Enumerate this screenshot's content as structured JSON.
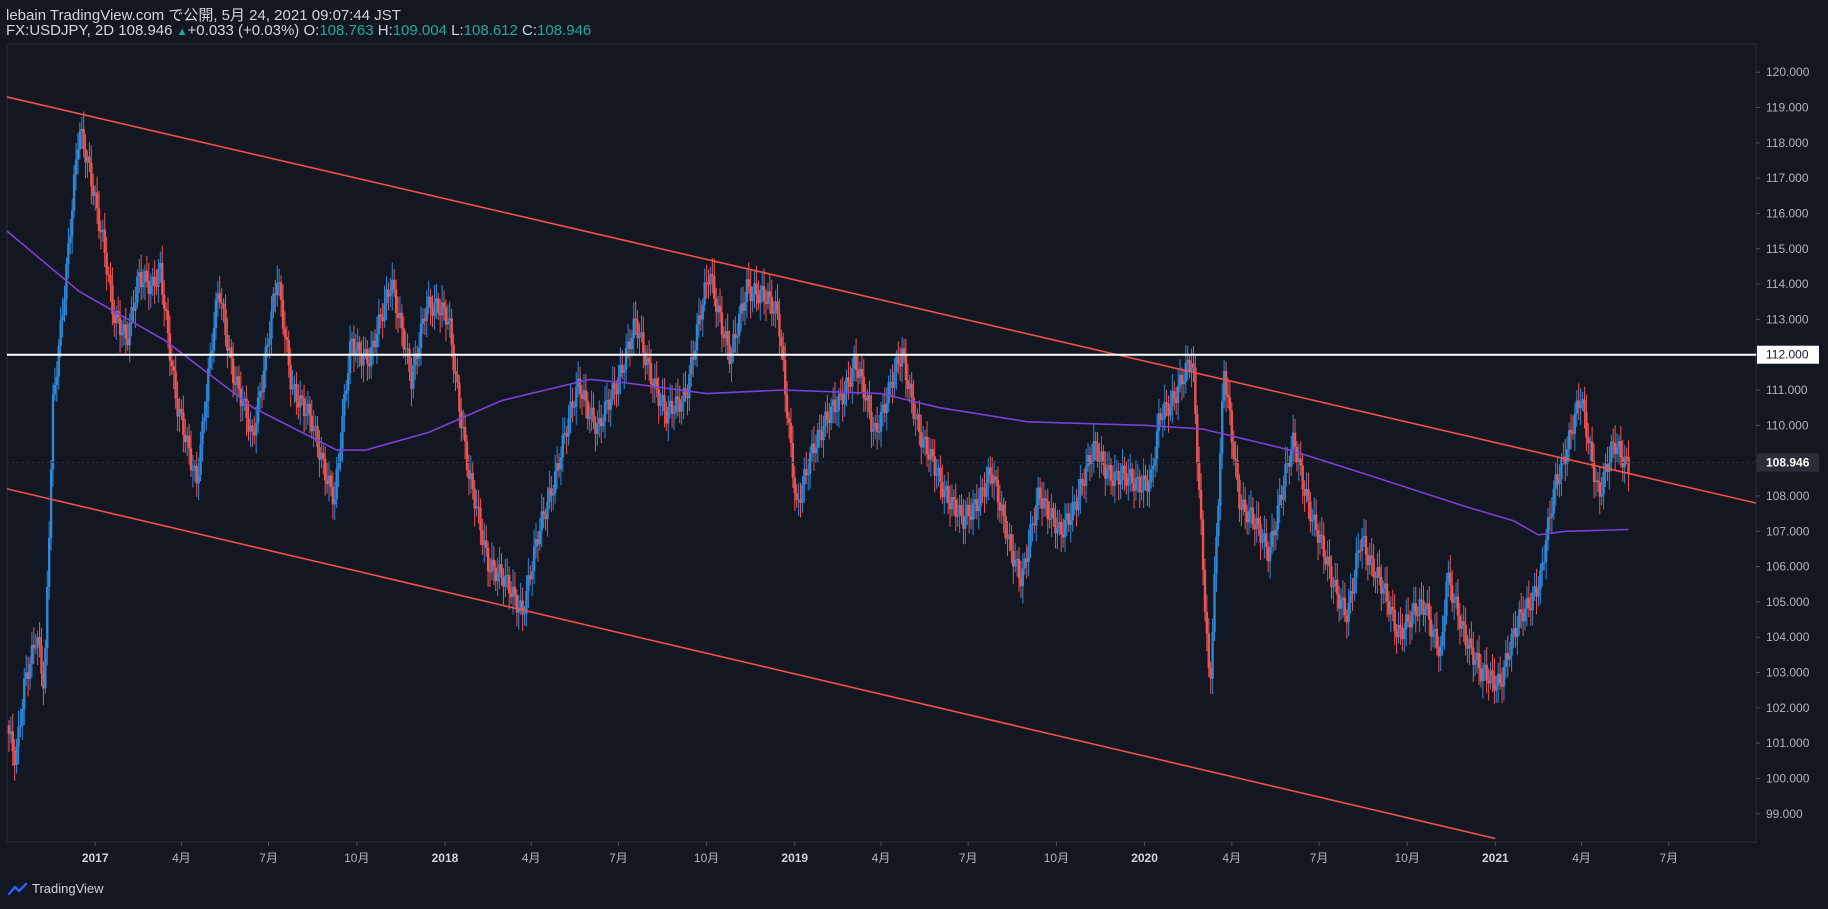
{
  "header": {
    "publisher": "lebain TradingView.com で公開, 5月 24, 2021 09:07:44 JST",
    "symbol": "FX:USDJPY, 2D 108.946",
    "change": "+0.033 (+0.03%)",
    "o_label": "O:",
    "o_value": "108.763",
    "h_label": "H:",
    "h_value": "109.004",
    "l_label": "L:",
    "l_value": "108.612",
    "c_label": "C:",
    "c_value": "108.946"
  },
  "footer": {
    "brand": "TradingView"
  },
  "colors": {
    "background": "#131722",
    "up": "#2e88d8",
    "down": "#ef5350",
    "channel": "#f05245",
    "moving_average": "#7e3fd6",
    "resistance": "#ffffff"
  },
  "chart_data": {
    "type": "candlestick",
    "symbol": "FX:USDJPY",
    "interval": "2D",
    "x_range": [
      "2016-10-01",
      "2021-09-30"
    ],
    "ylim": [
      98.2,
      120.8
    ],
    "y_ticks": [
      "99.000",
      "100.000",
      "101.000",
      "102.000",
      "103.000",
      "104.000",
      "105.000",
      "106.000",
      "107.000",
      "108.000",
      "109.000",
      "110.000",
      "111.000",
      "112.000",
      "113.000",
      "114.000",
      "115.000",
      "116.000",
      "117.000",
      "118.000",
      "119.000",
      "120.000"
    ],
    "x_ticks": [
      {
        "date": "2017-01-01",
        "label": "2017"
      },
      {
        "date": "2017-04-01",
        "label": "4月"
      },
      {
        "date": "2017-07-01",
        "label": "7月"
      },
      {
        "date": "2017-10-01",
        "label": "10月"
      },
      {
        "date": "2018-01-01",
        "label": "2018"
      },
      {
        "date": "2018-04-01",
        "label": "4月"
      },
      {
        "date": "2018-07-01",
        "label": "7月"
      },
      {
        "date": "2018-10-01",
        "label": "10月"
      },
      {
        "date": "2019-01-01",
        "label": "2019"
      },
      {
        "date": "2019-04-01",
        "label": "4月"
      },
      {
        "date": "2019-07-01",
        "label": "7月"
      },
      {
        "date": "2019-10-01",
        "label": "10月"
      },
      {
        "date": "2020-01-01",
        "label": "2020"
      },
      {
        "date": "2020-04-01",
        "label": "4月"
      },
      {
        "date": "2020-07-01",
        "label": "7月"
      },
      {
        "date": "2020-10-01",
        "label": "10月"
      },
      {
        "date": "2021-01-01",
        "label": "2021"
      },
      {
        "date": "2021-04-01",
        "label": "4月"
      },
      {
        "date": "2021-07-01",
        "label": "7月"
      }
    ],
    "price_path": [
      [
        "2016-10-01",
        101.5
      ],
      [
        "2016-10-10",
        100.4
      ],
      [
        "2016-10-20",
        102.8
      ],
      [
        "2016-11-01",
        104.2
      ],
      [
        "2016-11-09",
        102.5
      ],
      [
        "2016-11-18",
        110.5
      ],
      [
        "2016-12-01",
        114.2
      ],
      [
        "2016-12-15",
        118.3
      ],
      [
        "2016-12-28",
        117.0
      ],
      [
        "2017-01-10",
        115.2
      ],
      [
        "2017-01-20",
        113.0
      ],
      [
        "2017-02-03",
        112.5
      ],
      [
        "2017-02-15",
        114.2
      ],
      [
        "2017-03-01",
        113.8
      ],
      [
        "2017-03-10",
        114.5
      ],
      [
        "2017-03-27",
        110.5
      ],
      [
        "2017-04-17",
        108.5
      ],
      [
        "2017-05-10",
        113.9
      ],
      [
        "2017-05-25",
        111.5
      ],
      [
        "2017-06-14",
        109.6
      ],
      [
        "2017-07-10",
        114.1
      ],
      [
        "2017-07-25",
        111.2
      ],
      [
        "2017-08-15",
        110.0
      ],
      [
        "2017-09-08",
        107.9
      ],
      [
        "2017-09-25",
        112.4
      ],
      [
        "2017-10-15",
        111.8
      ],
      [
        "2017-11-06",
        114.2
      ],
      [
        "2017-11-27",
        111.2
      ],
      [
        "2017-12-12",
        113.5
      ],
      [
        "2018-01-05",
        113.0
      ],
      [
        "2018-01-26",
        108.5
      ],
      [
        "2018-02-15",
        106.2
      ],
      [
        "2018-03-05",
        105.5
      ],
      [
        "2018-03-23",
        104.8
      ],
      [
        "2018-04-10",
        107.0
      ],
      [
        "2018-05-21",
        111.2
      ],
      [
        "2018-06-10",
        109.8
      ],
      [
        "2018-07-19",
        112.8
      ],
      [
        "2018-08-20",
        110.2
      ],
      [
        "2018-09-10",
        111.0
      ],
      [
        "2018-10-04",
        114.4
      ],
      [
        "2018-10-26",
        111.8
      ],
      [
        "2018-11-12",
        114.0
      ],
      [
        "2018-12-15",
        113.2
      ],
      [
        "2019-01-03",
        107.5
      ],
      [
        "2019-01-20",
        109.5
      ],
      [
        "2019-02-15",
        110.6
      ],
      [
        "2019-03-05",
        111.8
      ],
      [
        "2019-03-25",
        109.8
      ],
      [
        "2019-04-23",
        112.0
      ],
      [
        "2019-05-14",
        109.5
      ],
      [
        "2019-06-25",
        107.2
      ],
      [
        "2019-07-25",
        108.6
      ],
      [
        "2019-08-26",
        105.5
      ],
      [
        "2019-09-13",
        108.2
      ],
      [
        "2019-10-05",
        106.8
      ],
      [
        "2019-11-10",
        109.3
      ],
      [
        "2019-12-01",
        108.5
      ],
      [
        "2020-01-08",
        108.4
      ],
      [
        "2020-01-17",
        110.2
      ],
      [
        "2020-02-20",
        111.8
      ],
      [
        "2020-03-09",
        102.5
      ],
      [
        "2020-03-24",
        111.5
      ],
      [
        "2020-04-10",
        107.8
      ],
      [
        "2020-05-10",
        106.5
      ],
      [
        "2020-06-05",
        109.6
      ],
      [
        "2020-06-25",
        107.2
      ],
      [
        "2020-07-31",
        104.5
      ],
      [
        "2020-08-14",
        106.9
      ],
      [
        "2020-09-21",
        104.2
      ],
      [
        "2020-10-20",
        104.9
      ],
      [
        "2020-11-06",
        103.5
      ],
      [
        "2020-11-11",
        105.6
      ],
      [
        "2020-12-17",
        102.9
      ],
      [
        "2021-01-06",
        102.8
      ],
      [
        "2021-01-29",
        104.7
      ],
      [
        "2021-02-17",
        105.6
      ],
      [
        "2021-03-05",
        108.4
      ],
      [
        "2021-03-31",
        110.7
      ],
      [
        "2021-04-19",
        108.1
      ],
      [
        "2021-05-05",
        109.4
      ],
      [
        "2021-05-20",
        108.946
      ]
    ],
    "moving_average": [
      [
        "2016-10-01",
        115.5
      ],
      [
        "2016-12-15",
        113.8
      ],
      [
        "2017-03-15",
        112.4
      ],
      [
        "2017-06-15",
        110.5
      ],
      [
        "2017-09-10",
        109.3
      ],
      [
        "2017-10-10",
        109.3
      ],
      [
        "2017-12-15",
        109.8
      ],
      [
        "2018-03-01",
        110.7
      ],
      [
        "2018-06-01",
        111.3
      ],
      [
        "2018-07-10",
        111.2
      ],
      [
        "2018-10-01",
        110.9
      ],
      [
        "2018-12-20",
        111.0
      ],
      [
        "2019-04-01",
        110.9
      ],
      [
        "2019-06-01",
        110.5
      ],
      [
        "2019-09-01",
        110.1
      ],
      [
        "2020-01-01",
        110.0
      ],
      [
        "2020-03-01",
        109.9
      ],
      [
        "2020-06-01",
        109.3
      ],
      [
        "2020-09-01",
        108.5
      ],
      [
        "2020-12-01",
        107.7
      ],
      [
        "2021-01-20",
        107.3
      ],
      [
        "2021-02-15",
        106.9
      ],
      [
        "2021-03-15",
        107.0
      ],
      [
        "2021-05-20",
        107.05
      ]
    ],
    "lines": [
      {
        "name": "upper-channel",
        "from": [
          "2016-10-01",
          119.3
        ],
        "to": [
          "2021-09-30",
          107.8
        ]
      },
      {
        "name": "lower-channel",
        "from": [
          "2016-10-01",
          108.2
        ],
        "to": [
          "2021-01-01",
          98.3
        ]
      },
      {
        "name": "horizontal-level",
        "price": 112.0,
        "label": "112.000"
      }
    ],
    "last_price": {
      "value": 108.946,
      "label": "108.946"
    }
  }
}
